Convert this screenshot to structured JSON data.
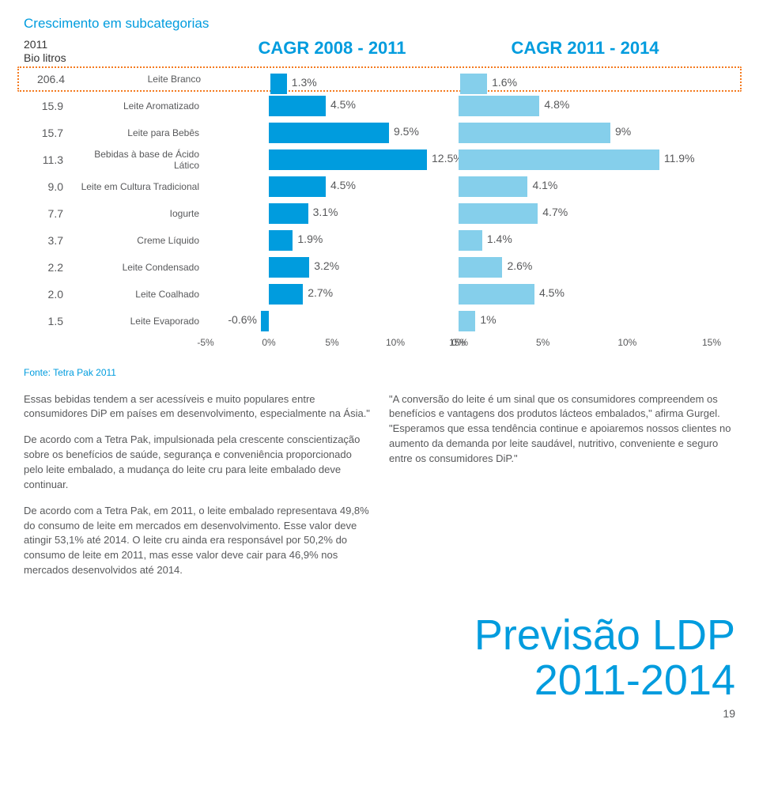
{
  "colors": {
    "accent": "#009cde",
    "bar_light": "#85cfeb",
    "text_dark": "#58595b",
    "dotted": "#f47b20"
  },
  "chart": {
    "title": "Crescimento em subcategorias",
    "header_left_l1": "2011",
    "header_left_l2": "Bio litros",
    "header_mid": "CAGR 2008 - 2011",
    "header_right": "CAGR 2011 - 2014",
    "domain1_min": -5,
    "domain1_max": 15,
    "domain2_min": 0,
    "domain2_max": 15,
    "axis1_ticks": [
      "-5%",
      "0%",
      "5%",
      "10%",
      "15%"
    ],
    "axis1_positions": [
      -5,
      0,
      5,
      10,
      15
    ],
    "axis2_ticks": [
      "0%",
      "5%",
      "10%",
      "15%"
    ],
    "axis2_positions": [
      0,
      5,
      10,
      15
    ],
    "rows": [
      {
        "vol": "206.4",
        "cat": "Leite Branco",
        "v1": 1.3,
        "l1": "1.3%",
        "v2": 1.6,
        "l2": "1.6%",
        "highlight": true
      },
      {
        "vol": "15.9",
        "cat": "Leite Aromatizado",
        "v1": 4.5,
        "l1": "4.5%",
        "v2": 4.8,
        "l2": "4.8%"
      },
      {
        "vol": "15.7",
        "cat": "Leite para Bebês",
        "v1": 9.5,
        "l1": "9.5%",
        "v2": 9.0,
        "l2": "9%"
      },
      {
        "vol": "11.3",
        "cat": "Bebidas à base de Ácido Lático",
        "v1": 12.5,
        "l1": "12.5%",
        "v2": 11.9,
        "l2": "11.9%"
      },
      {
        "vol": "9.0",
        "cat": "Leite em Cultura Tradicional",
        "v1": 4.5,
        "l1": "4.5%",
        "v2": 4.1,
        "l2": "4.1%"
      },
      {
        "vol": "7.7",
        "cat": "Iogurte",
        "v1": 3.1,
        "l1": "3.1%",
        "v2": 4.7,
        "l2": "4.7%"
      },
      {
        "vol": "3.7",
        "cat": "Creme Líquido",
        "v1": 1.9,
        "l1": "1.9%",
        "v2": 1.4,
        "l2": "1.4%"
      },
      {
        "vol": "2.2",
        "cat": "Leite Condensado",
        "v1": 3.2,
        "l1": "3.2%",
        "v2": 2.6,
        "l2": "2.6%"
      },
      {
        "vol": "2.0",
        "cat": "Leite Coalhado",
        "v1": 2.7,
        "l1": "2.7%",
        "v2": 4.5,
        "l2": "4.5%"
      },
      {
        "vol": "1.5",
        "cat": "Leite Evaporado",
        "v1": -0.6,
        "l1": "-0.6%",
        "v2": 1.0,
        "l2": "1%"
      }
    ]
  },
  "source": "Fonte: Tetra Pak 2011",
  "body": {
    "col1": [
      "Essas bebidas tendem a ser acessíveis e muito populares entre consumidores DiP em países em desenvolvimento, especialmente na Ásia.\"",
      "De acordo com a Tetra Pak, impulsionada pela crescente conscientização sobre os benefícios de saúde, segurança e conveniência proporcionado pelo leite embalado, a mudança do leite cru para leite embalado deve continuar.",
      "De acordo com a Tetra Pak, em 2011, o leite embalado representava 49,8% do consumo de leite em mercados em desenvolvimento. Esse valor deve atingir 53,1% até 2014. O leite cru ainda era responsável por 50,2% do consumo de leite em 2011, mas esse valor deve cair para 46,9% nos mercados desenvolvidos até 2014."
    ],
    "col2": [
      "\"A conversão do leite é um sinal que os consumidores compreendem os benefícios e vantagens dos produtos lácteos embalados,\" afirma Gurgel. \"Esperamos que essa tendência continue e apoiaremos nossos clientes no aumento da demanda por leite saudável, nutritivo, conveniente e seguro entre os consumidores DiP.\""
    ]
  },
  "big_title_l1": "Previsão LDP",
  "big_title_l2": "2011-2014",
  "page_number": "19"
}
